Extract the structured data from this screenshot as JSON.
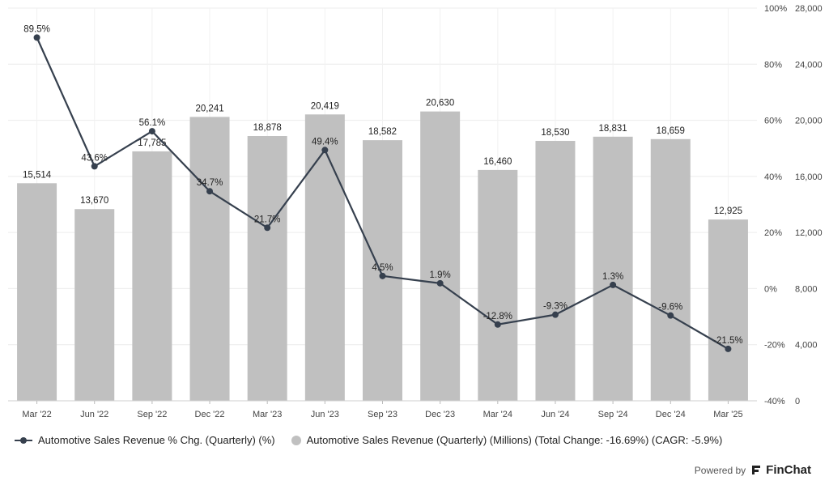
{
  "chart_data": {
    "type": "bar",
    "categories": [
      "Mar '22",
      "Jun '22",
      "Sep '22",
      "Dec '22",
      "Mar '23",
      "Jun '23",
      "Sep '23",
      "Dec '23",
      "Mar '24",
      "Jun '24",
      "Sep '24",
      "Dec '24",
      "Mar '25"
    ],
    "series": [
      {
        "name": "Automotive Sales Revenue (Quarterly) (Millions) (Total Change: -16.69%) (CAGR: -5.9%)",
        "type": "bar",
        "axis": "right-outer",
        "color": "#c0c0c0",
        "values": [
          15514,
          13670,
          17785,
          20241,
          18878,
          20419,
          18582,
          20630,
          16460,
          18530,
          18831,
          18659,
          12925
        ],
        "labels": [
          "15,514",
          "13,670",
          "17,785",
          "20,241",
          "18,878",
          "20,419",
          "18,582",
          "20,630",
          "16,460",
          "18,530",
          "18,831",
          "18,659",
          "12,925"
        ]
      },
      {
        "name": "Automotive Sales Revenue % Chg. (Quarterly) (%)",
        "type": "line",
        "axis": "right-inner",
        "color": "#36404e",
        "values": [
          89.5,
          43.6,
          56.1,
          34.7,
          21.7,
          49.4,
          4.5,
          1.9,
          -12.8,
          -9.3,
          1.3,
          -9.6,
          -21.5
        ],
        "labels": [
          "89.5%",
          "43.6%",
          "56.1%",
          "34.7%",
          "21.7%",
          "49.4%",
          "4.5%",
          "1.9%",
          "-12.8%",
          "-9.3%",
          "1.3%",
          "-9.6%",
          "-21.5%"
        ]
      }
    ],
    "pct_axis": {
      "min": -40,
      "max": 100,
      "ticks": [
        "100%",
        "80%",
        "60%",
        "40%",
        "20%",
        "0%",
        "-20%",
        "-40%"
      ]
    },
    "value_axis": {
      "min": 0,
      "max": 28000,
      "ticks": [
        "28,000",
        "24,000",
        "20,000",
        "16,000",
        "12,000",
        "8,000",
        "4,000",
        "0"
      ]
    },
    "grid": true,
    "legend_position": "bottom-left"
  },
  "legend": {
    "line_label": "Automotive Sales Revenue % Chg. (Quarterly) (%)",
    "bar_label": "Automotive Sales Revenue (Quarterly) (Millions) (Total Change: -16.69%) (CAGR: -5.9%)"
  },
  "footer": {
    "powered_by": "Powered by",
    "brand": "FinChat"
  }
}
